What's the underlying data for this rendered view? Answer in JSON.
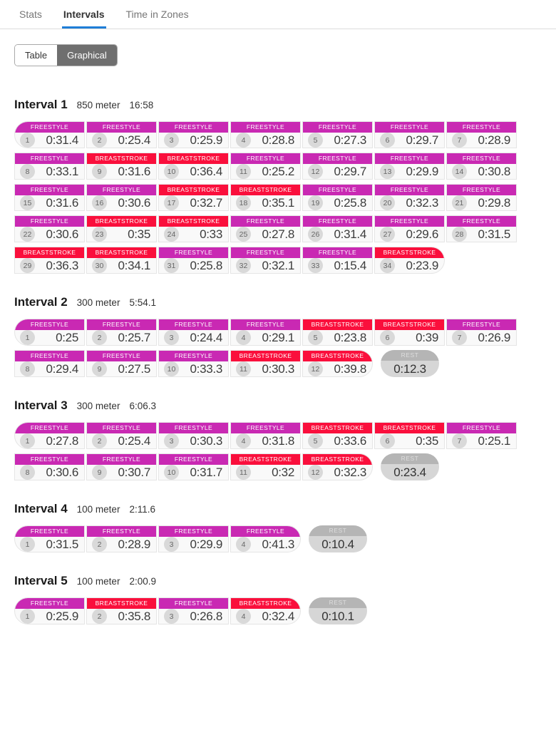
{
  "tabs": [
    {
      "label": "Stats",
      "active": false
    },
    {
      "label": "Intervals",
      "active": true
    },
    {
      "label": "Time in Zones",
      "active": false
    }
  ],
  "view_toggle": [
    {
      "label": "Table",
      "active": false
    },
    {
      "label": "Graphical",
      "active": true
    }
  ],
  "labels": {
    "rest": "REST"
  },
  "colors": {
    "freestyle": "#c929b3",
    "breaststroke": "#fa0f3c",
    "tab_active_underline": "#1e7ed7",
    "toggle_active_bg": "#6f6f6f",
    "rest_header_bg": "#b5b5b5",
    "rest_header_text": "#dedede",
    "rest_body_bg": "#d6d6d6"
  },
  "laps_per_row": 7,
  "intervals": [
    {
      "title": "Interval 1",
      "distance": "850 meter",
      "time": "16:58",
      "rest": null,
      "laps": [
        {
          "n": 1,
          "stroke": "FREESTYLE",
          "time": "0:31.4"
        },
        {
          "n": 2,
          "stroke": "FREESTYLE",
          "time": "0:25.4"
        },
        {
          "n": 3,
          "stroke": "FREESTYLE",
          "time": "0:25.9"
        },
        {
          "n": 4,
          "stroke": "FREESTYLE",
          "time": "0:28.8"
        },
        {
          "n": 5,
          "stroke": "FREESTYLE",
          "time": "0:27.3"
        },
        {
          "n": 6,
          "stroke": "FREESTYLE",
          "time": "0:29.7"
        },
        {
          "n": 7,
          "stroke": "FREESTYLE",
          "time": "0:28.9"
        },
        {
          "n": 8,
          "stroke": "FREESTYLE",
          "time": "0:33.1"
        },
        {
          "n": 9,
          "stroke": "BREASTSTROKE",
          "time": "0:31.6"
        },
        {
          "n": 10,
          "stroke": "BREASTSTROKE",
          "time": "0:36.4"
        },
        {
          "n": 11,
          "stroke": "FREESTYLE",
          "time": "0:25.2"
        },
        {
          "n": 12,
          "stroke": "FREESTYLE",
          "time": "0:29.7"
        },
        {
          "n": 13,
          "stroke": "FREESTYLE",
          "time": "0:29.9"
        },
        {
          "n": 14,
          "stroke": "FREESTYLE",
          "time": "0:30.8"
        },
        {
          "n": 15,
          "stroke": "FREESTYLE",
          "time": "0:31.6"
        },
        {
          "n": 16,
          "stroke": "FREESTYLE",
          "time": "0:30.6"
        },
        {
          "n": 17,
          "stroke": "BREASTSTROKE",
          "time": "0:32.7"
        },
        {
          "n": 18,
          "stroke": "BREASTSTROKE",
          "time": "0:35.1"
        },
        {
          "n": 19,
          "stroke": "FREESTYLE",
          "time": "0:25.8"
        },
        {
          "n": 20,
          "stroke": "FREESTYLE",
          "time": "0:32.3"
        },
        {
          "n": 21,
          "stroke": "FREESTYLE",
          "time": "0:29.8"
        },
        {
          "n": 22,
          "stroke": "FREESTYLE",
          "time": "0:30.6"
        },
        {
          "n": 23,
          "stroke": "BREASTSTROKE",
          "time": "0:35"
        },
        {
          "n": 24,
          "stroke": "BREASTSTROKE",
          "time": "0:33"
        },
        {
          "n": 25,
          "stroke": "FREESTYLE",
          "time": "0:27.8"
        },
        {
          "n": 26,
          "stroke": "FREESTYLE",
          "time": "0:31.4"
        },
        {
          "n": 27,
          "stroke": "FREESTYLE",
          "time": "0:29.6"
        },
        {
          "n": 28,
          "stroke": "FREESTYLE",
          "time": "0:31.5"
        },
        {
          "n": 29,
          "stroke": "BREASTSTROKE",
          "time": "0:36.3"
        },
        {
          "n": 30,
          "stroke": "BREASTSTROKE",
          "time": "0:34.1"
        },
        {
          "n": 31,
          "stroke": "FREESTYLE",
          "time": "0:25.8"
        },
        {
          "n": 32,
          "stroke": "FREESTYLE",
          "time": "0:32.1"
        },
        {
          "n": 33,
          "stroke": "FREESTYLE",
          "time": "0:15.4"
        },
        {
          "n": 34,
          "stroke": "BREASTSTROKE",
          "time": "0:23.9"
        }
      ]
    },
    {
      "title": "Interval 2",
      "distance": "300 meter",
      "time": "5:54.1",
      "rest": "0:12.3",
      "laps": [
        {
          "n": 1,
          "stroke": "FREESTYLE",
          "time": "0:25"
        },
        {
          "n": 2,
          "stroke": "FREESTYLE",
          "time": "0:25.7"
        },
        {
          "n": 3,
          "stroke": "FREESTYLE",
          "time": "0:24.4"
        },
        {
          "n": 4,
          "stroke": "FREESTYLE",
          "time": "0:29.1"
        },
        {
          "n": 5,
          "stroke": "BREASTSTROKE",
          "time": "0:23.8"
        },
        {
          "n": 6,
          "stroke": "BREASTSTROKE",
          "time": "0:39"
        },
        {
          "n": 7,
          "stroke": "FREESTYLE",
          "time": "0:26.9"
        },
        {
          "n": 8,
          "stroke": "FREESTYLE",
          "time": "0:29.4"
        },
        {
          "n": 9,
          "stroke": "FREESTYLE",
          "time": "0:27.5"
        },
        {
          "n": 10,
          "stroke": "FREESTYLE",
          "time": "0:33.3"
        },
        {
          "n": 11,
          "stroke": "BREASTSTROKE",
          "time": "0:30.3"
        },
        {
          "n": 12,
          "stroke": "BREASTSTROKE",
          "time": "0:39.8"
        }
      ]
    },
    {
      "title": "Interval 3",
      "distance": "300 meter",
      "time": "6:06.3",
      "rest": "0:23.4",
      "laps": [
        {
          "n": 1,
          "stroke": "FREESTYLE",
          "time": "0:27.8"
        },
        {
          "n": 2,
          "stroke": "FREESTYLE",
          "time": "0:25.4"
        },
        {
          "n": 3,
          "stroke": "FREESTYLE",
          "time": "0:30.3"
        },
        {
          "n": 4,
          "stroke": "FREESTYLE",
          "time": "0:31.8"
        },
        {
          "n": 5,
          "stroke": "BREASTSTROKE",
          "time": "0:33.6"
        },
        {
          "n": 6,
          "stroke": "BREASTSTROKE",
          "time": "0:35"
        },
        {
          "n": 7,
          "stroke": "FREESTYLE",
          "time": "0:25.1"
        },
        {
          "n": 8,
          "stroke": "FREESTYLE",
          "time": "0:30.6"
        },
        {
          "n": 9,
          "stroke": "FREESTYLE",
          "time": "0:30.7"
        },
        {
          "n": 10,
          "stroke": "FREESTYLE",
          "time": "0:31.7"
        },
        {
          "n": 11,
          "stroke": "BREASTSTROKE",
          "time": "0:32"
        },
        {
          "n": 12,
          "stroke": "BREASTSTROKE",
          "time": "0:32.3"
        }
      ]
    },
    {
      "title": "Interval 4",
      "distance": "100 meter",
      "time": "2:11.6",
      "rest": "0:10.4",
      "laps": [
        {
          "n": 1,
          "stroke": "FREESTYLE",
          "time": "0:31.5"
        },
        {
          "n": 2,
          "stroke": "FREESTYLE",
          "time": "0:28.9"
        },
        {
          "n": 3,
          "stroke": "FREESTYLE",
          "time": "0:29.9"
        },
        {
          "n": 4,
          "stroke": "FREESTYLE",
          "time": "0:41.3"
        }
      ]
    },
    {
      "title": "Interval 5",
      "distance": "100 meter",
      "time": "2:00.9",
      "rest": "0:10.1",
      "laps": [
        {
          "n": 1,
          "stroke": "FREESTYLE",
          "time": "0:25.9"
        },
        {
          "n": 2,
          "stroke": "BREASTSTROKE",
          "time": "0:35.8"
        },
        {
          "n": 3,
          "stroke": "FREESTYLE",
          "time": "0:26.8"
        },
        {
          "n": 4,
          "stroke": "BREASTSTROKE",
          "time": "0:32.4"
        }
      ]
    }
  ]
}
